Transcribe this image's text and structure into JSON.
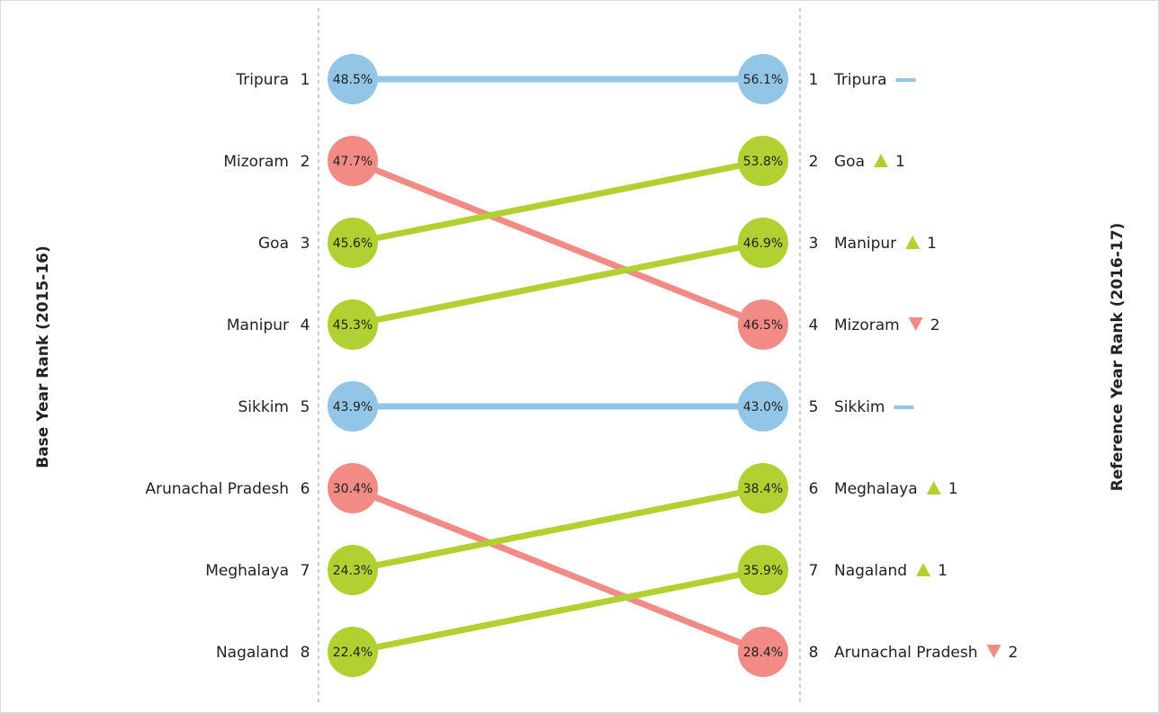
{
  "colors": {
    "same": "#93c5e6",
    "up": "#b1d133",
    "down": "#f28b85",
    "guide": "#aaaaaa"
  },
  "chart_data": {
    "type": "slope",
    "left_axis_title": "Base Year Rank (2015-16)",
    "right_axis_title": "Reference Year Rank (2016-17)",
    "left": [
      {
        "rank": 1,
        "state": "Tripura",
        "value": "48.5%"
      },
      {
        "rank": 2,
        "state": "Mizoram",
        "value": "47.7%"
      },
      {
        "rank": 3,
        "state": "Goa",
        "value": "45.6%"
      },
      {
        "rank": 4,
        "state": "Manipur",
        "value": "45.3%"
      },
      {
        "rank": 5,
        "state": "Sikkim",
        "value": "43.9%"
      },
      {
        "rank": 6,
        "state": "Arunachal Pradesh",
        "value": "30.4%"
      },
      {
        "rank": 7,
        "state": "Meghalaya",
        "value": "24.3%"
      },
      {
        "rank": 8,
        "state": "Nagaland",
        "value": "22.4%"
      }
    ],
    "right": [
      {
        "rank": 1,
        "state": "Tripura",
        "value": "56.1%",
        "change": "same",
        "delta": ""
      },
      {
        "rank": 2,
        "state": "Goa",
        "value": "53.8%",
        "change": "up",
        "delta": "1"
      },
      {
        "rank": 3,
        "state": "Manipur",
        "value": "46.9%",
        "change": "up",
        "delta": "1"
      },
      {
        "rank": 4,
        "state": "Mizoram",
        "value": "46.5%",
        "change": "down",
        "delta": "2"
      },
      {
        "rank": 5,
        "state": "Sikkim",
        "value": "43.0%",
        "change": "same",
        "delta": ""
      },
      {
        "rank": 6,
        "state": "Meghalaya",
        "value": "38.4%",
        "change": "up",
        "delta": "1"
      },
      {
        "rank": 7,
        "state": "Nagaland",
        "value": "35.9%",
        "change": "up",
        "delta": "1"
      },
      {
        "rank": 8,
        "state": "Arunachal Pradesh",
        "value": "28.4%",
        "change": "down",
        "delta": "2"
      }
    ]
  }
}
